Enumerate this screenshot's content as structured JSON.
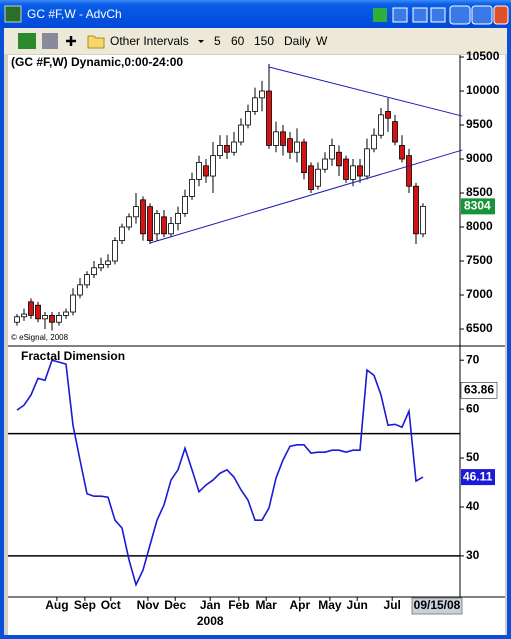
{
  "window": {
    "title": "GC #F,W - AdvCh"
  },
  "toolbar": {
    "items": [
      "Other Intervals",
      "5",
      "60",
      "150",
      "Daily",
      "W"
    ]
  },
  "chart_data": [
    {
      "type": "candlestick",
      "title": "(GC #F,W) Dynamic,0:00-24:00",
      "source_note": "© eSignal, 2008",
      "open": [
        6600,
        6680,
        6900,
        6850,
        6650,
        6700,
        6600,
        6700,
        6750,
        7000,
        7150,
        7300,
        7400,
        7450,
        7500,
        7800,
        8000,
        8150,
        8400,
        8300,
        7900,
        8150,
        7900,
        8050,
        8200,
        8450,
        8700,
        8900,
        8750,
        9050,
        9200,
        9100,
        9250,
        9500,
        9700,
        9900,
        10000,
        9200,
        9400,
        9300,
        9100,
        9250,
        8900,
        8600,
        8850,
        9000,
        9100,
        9000,
        8700,
        8900,
        8750,
        9150,
        9350,
        9700,
        9550,
        9200,
        9050,
        8600,
        7900
      ],
      "high": [
        6720,
        6800,
        6950,
        6900,
        6750,
        6750,
        6750,
        6800,
        7100,
        7250,
        7350,
        7500,
        7550,
        7600,
        7850,
        8050,
        8200,
        8500,
        8450,
        8350,
        8250,
        8250,
        8150,
        8300,
        8550,
        8800,
        9050,
        9000,
        9250,
        9350,
        9350,
        9400,
        9600,
        9800,
        10050,
        10150,
        10400,
        9550,
        9500,
        9400,
        9450,
        9300,
        8950,
        8950,
        9100,
        9300,
        9200,
        9050,
        9000,
        9000,
        9300,
        9450,
        9750,
        9900,
        9650,
        9350,
        9150,
        8650,
        8350
      ],
      "low": [
        6550,
        6620,
        6650,
        6600,
        6500,
        6480,
        6550,
        6650,
        6700,
        6950,
        7100,
        7250,
        7350,
        7400,
        7450,
        7750,
        7950,
        8050,
        7800,
        7750,
        7800,
        7850,
        7850,
        7950,
        8150,
        8400,
        8600,
        8650,
        8500,
        9000,
        9000,
        9050,
        9200,
        9450,
        9650,
        9700,
        9150,
        9100,
        9050,
        9000,
        8950,
        8700,
        8500,
        8550,
        8800,
        8900,
        8750,
        8650,
        8600,
        8650,
        8700,
        9100,
        9300,
        9400,
        9200,
        8950,
        8500,
        7750,
        7850
      ],
      "close": [
        6680,
        6720,
        6700,
        6650,
        6700,
        6600,
        6700,
        6750,
        7000,
        7150,
        7300,
        7400,
        7450,
        7500,
        7800,
        8000,
        8150,
        8300,
        7900,
        7800,
        8200,
        7900,
        8050,
        8200,
        8450,
        8700,
        8950,
        8750,
        9050,
        9200,
        9100,
        9250,
        9500,
        9700,
        9900,
        10000,
        9200,
        9400,
        9200,
        9100,
        9250,
        8800,
        8550,
        8850,
        9000,
        9200,
        8900,
        8700,
        8900,
        8750,
        9150,
        9350,
        9650,
        9600,
        9250,
        9000,
        8600,
        7900,
        8304
      ],
      "up_color": "#ffffff",
      "down_color": "#d41414",
      "last_label_color": "#17943a",
      "trendlines": [
        {
          "x": [
            36,
            63.6
          ],
          "values": [
            10353,
            9632
          ]
        },
        {
          "x": [
            19,
            63.6
          ],
          "values": [
            7765,
            9132
          ]
        }
      ],
      "trendline_color": "#1c1cb4",
      "ylim": [
        6265,
        10530
      ],
      "yticks": [
        6500,
        7000,
        7500,
        8000,
        8500,
        9000,
        9500,
        10000,
        10500
      ]
    },
    {
      "type": "line",
      "title": "Fractal Dimension",
      "series": [
        {
          "color": "#1a1ad8",
          "values": [
            59.8,
            60.8,
            62.9,
            66.3,
            65.9,
            70,
            69.6,
            69.2,
            56.7,
            49.6,
            42.7,
            42.2,
            42.2,
            42.0,
            37.3,
            35.7,
            29.2,
            24.1,
            27.1,
            32.2,
            37.3,
            40.4,
            45.5,
            47.6,
            52.0,
            47.6,
            43.1,
            44.5,
            45.5,
            46.9,
            47.6,
            46.1,
            43.5,
            41.4,
            37.3,
            37.3,
            39.8,
            45.9,
            49.6,
            52.4,
            52.7,
            52.7,
            51.0,
            51.2,
            51.2,
            51.6,
            51.6,
            51.2,
            51.6,
            51.6,
            68.0,
            66.9,
            62.9,
            56.7,
            56.9,
            56.3,
            59.6,
            45.3,
            46.11
          ]
        }
      ],
      "levels": [
        55,
        30
      ],
      "marker_value": 63.86,
      "ylim": [
        21.6,
        72.7
      ],
      "yticks": [
        30,
        40,
        50,
        60,
        70
      ],
      "xticks": [
        {
          "value": 5.7,
          "label": "Aug"
        },
        {
          "value": 9.7,
          "label": "Sep"
        },
        {
          "value": 13.4,
          "label": "Oct"
        },
        {
          "value": 18.7,
          "label": "Nov"
        },
        {
          "value": 22.6,
          "label": "Dec"
        },
        {
          "value": 27.6,
          "label": "Jan"
        },
        {
          "value": 31.7,
          "label": "Feb"
        },
        {
          "value": 35.6,
          "label": "Mar"
        },
        {
          "value": 40.4,
          "label": "Apr"
        },
        {
          "value": 44.7,
          "label": "May"
        },
        {
          "value": 48.6,
          "label": "Jun"
        },
        {
          "value": 53.6,
          "label": "Jul"
        }
      ],
      "x_sublabel": "2008",
      "cursor_label": "09/15/08"
    }
  ]
}
